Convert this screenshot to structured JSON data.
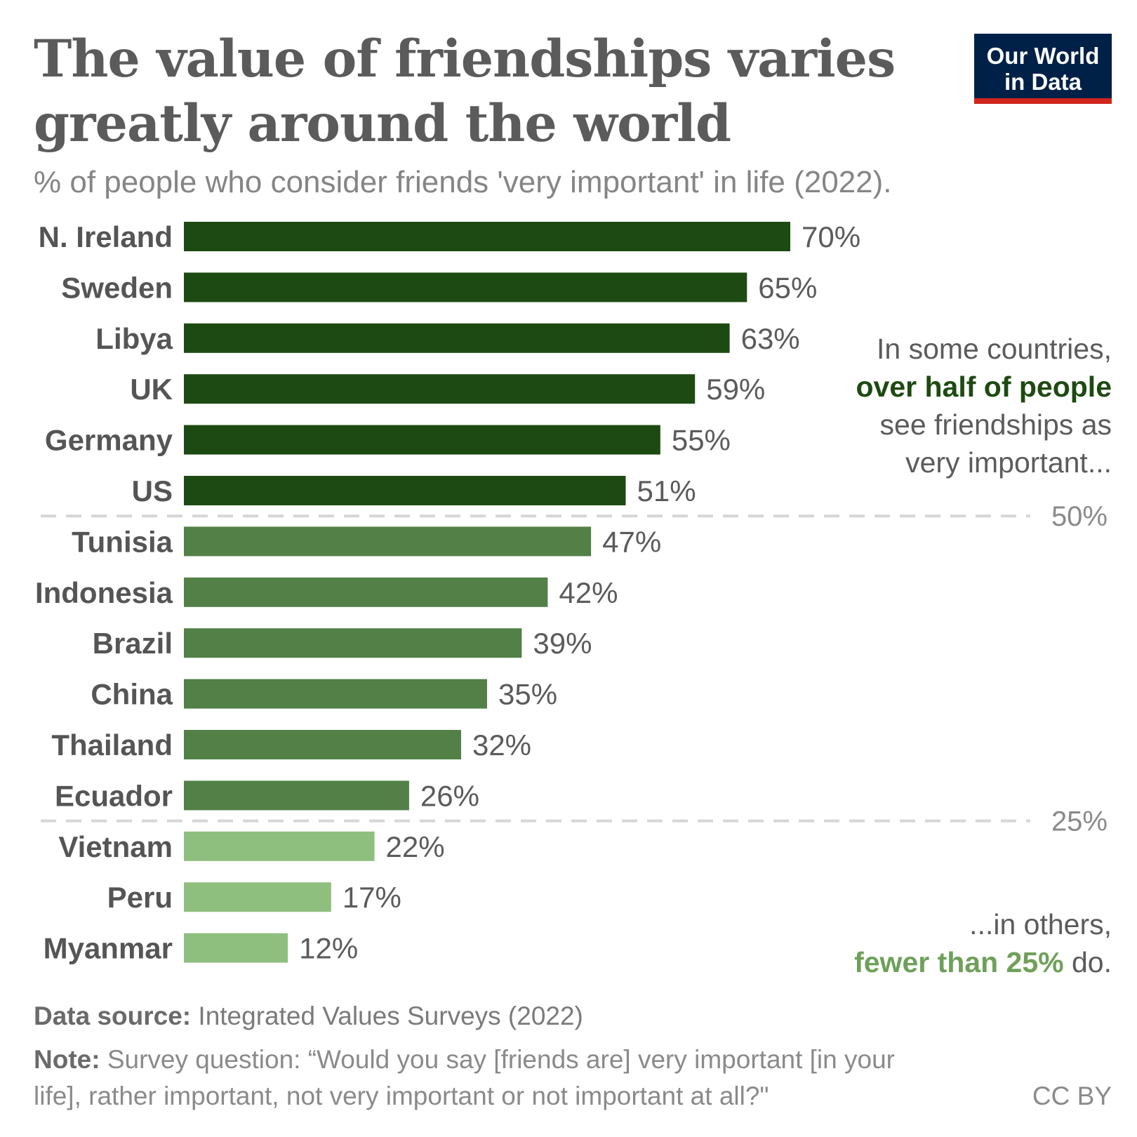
{
  "title": "The value of friendships varies greatly around the world",
  "subtitle": "% of people who consider friends 'very important' in life (2022).",
  "logo": {
    "line1": "Our World",
    "line2": "in Data"
  },
  "annotations": {
    "top_pre": "In some countries,",
    "top_emph": "over half of people",
    "top_post1": "see friendships as",
    "top_post2": "very important...",
    "bottom_pre": "...in others,",
    "bottom_emph": "fewer than 25%",
    "bottom_post": "do."
  },
  "footer": {
    "source_label": "Data source:",
    "source_text": "Integrated Values Surveys (2022)",
    "note_label": "Note:",
    "note_text": "Survey question: “Would you say [friends are] very important [in your life], rather important, not very important or not important at all?\"",
    "license": "CC BY"
  },
  "colors": {
    "high": "#1d4a12",
    "mid": "#528047",
    "low": "#8fbf7e",
    "threshold_line": "#d6d6d6"
  },
  "chart_data": {
    "type": "bar",
    "orientation": "horizontal",
    "title": "The value of friendships varies greatly around the world",
    "xlabel": "",
    "ylabel": "",
    "xlim": [
      0,
      70
    ],
    "unit": "%",
    "categories": [
      "N. Ireland",
      "Sweden",
      "Libya",
      "UK",
      "Germany",
      "US",
      "Tunisia",
      "Indonesia",
      "Brazil",
      "China",
      "Thailand",
      "Ecuador",
      "Vietnam",
      "Peru",
      "Myanmar"
    ],
    "values": [
      70,
      65,
      63,
      59,
      55,
      51,
      47,
      42,
      39,
      35,
      32,
      26,
      22,
      17,
      12
    ],
    "value_labels": [
      "70%",
      "65%",
      "63%",
      "59%",
      "55%",
      "51%",
      "47%",
      "42%",
      "39%",
      "35%",
      "32%",
      "26%",
      "22%",
      "17%",
      "12%"
    ],
    "groups": [
      "high",
      "high",
      "high",
      "high",
      "high",
      "high",
      "mid",
      "mid",
      "mid",
      "mid",
      "mid",
      "mid",
      "low",
      "low",
      "low"
    ],
    "thresholds": [
      {
        "value": 50,
        "label": "50%"
      },
      {
        "value": 25,
        "label": "25%"
      }
    ]
  }
}
